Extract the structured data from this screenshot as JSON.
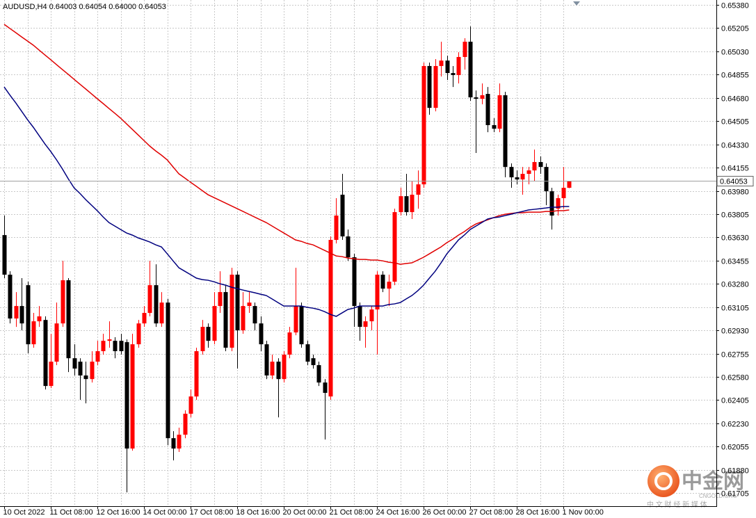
{
  "chart_data": {
    "type": "candlestick",
    "title": "AUDUSD,H4  0.64003 0.64054 0.64000 0.64053",
    "categories": [
      "10 Oct 2022",
      null,
      null,
      null,
      null,
      null,
      null,
      null,
      "11 Oct 08:00",
      null,
      null,
      null,
      null,
      null,
      null,
      null,
      "12 Oct 16:00",
      null,
      null,
      null,
      null,
      null,
      null,
      null,
      "14 Oct 00:00",
      null,
      null,
      null,
      null,
      null,
      null,
      null,
      "17 Oct 08:00",
      null,
      null,
      null,
      null,
      null,
      null,
      null,
      "18 Oct 16:00",
      null,
      null,
      null,
      null,
      null,
      null,
      null,
      "20 Oct 00:00",
      null,
      null,
      null,
      null,
      null,
      null,
      null,
      "21 Oct 08:00",
      null,
      null,
      null,
      null,
      null,
      null,
      null,
      "24 Oct 16:00",
      null,
      null,
      null,
      null,
      null,
      null,
      null,
      "26 Oct 00:00",
      null,
      null,
      null,
      null,
      null,
      null,
      null,
      "27 Oct 08:00",
      null,
      null,
      null,
      null,
      null,
      null,
      null,
      "28 Oct 16:00",
      null,
      null,
      null,
      null,
      null,
      null,
      null,
      "1 Nov 00:00",
      null
    ],
    "open": [
      0.63647,
      0.63349,
      0.63019,
      0.63113,
      0.6327,
      0.62825,
      0.62998,
      0.63008,
      0.62511,
      0.62694,
      0.62982,
      0.63307,
      0.6272,
      0.62694,
      0.6259,
      0.62563,
      0.62694,
      0.62773,
      0.62851,
      0.62851,
      0.62851,
      0.62841,
      0.6204,
      0.62825,
      0.62982,
      0.63061,
      0.6327,
      0.62982,
      0.63139,
      0.62118,
      0.6204,
      0.62144,
      0.62302,
      0.62432,
      0.62773,
      0.62956,
      0.62851,
      0.63113,
      0.63218,
      0.62799,
      0.63349,
      0.6293,
      0.63113,
      0.63113,
      0.62982,
      0.62825,
      0.6259,
      0.62694,
      0.62563,
      0.62747,
      0.62914,
      0.63113,
      0.62825,
      0.6272,
      0.62668,
      0.62537,
      0.62432,
      0.63611,
      0.63951,
      0.63637,
      0.6348,
      0.63113,
      0.62956,
      0.62998,
      0.63087,
      0.63349,
      0.63244,
      0.63296,
      0.6382,
      0.6394,
      0.6382,
      0.63951,
      0.64029,
      0.6492,
      0.64605,
      0.6492,
      0.64961,
      0.64867,
      0.64852,
      0.64988,
      0.65103,
      0.64684,
      0.64673,
      0.6471,
      0.64475,
      0.64448,
      0.647,
      0.6416,
      0.64082,
      0.64066,
      0.64108,
      0.64134,
      0.64197,
      0.6416,
      0.63977,
      0.63846,
      0.63925,
      0.64003
    ],
    "high": [
      0.63794,
      0.63375,
      0.63218,
      0.63323,
      0.63296,
      0.63061,
      0.63113,
      0.63035,
      0.62904,
      0.63139,
      0.63453,
      0.63323,
      0.62825,
      0.6272,
      0.62694,
      0.62773,
      0.62851,
      0.62904,
      0.62998,
      0.62878,
      0.62904,
      0.62862,
      0.62904,
      0.63008,
      0.63113,
      0.63453,
      0.63427,
      0.63218,
      0.63166,
      0.62171,
      0.62197,
      0.62328,
      0.62485,
      0.62799,
      0.63008,
      0.62982,
      0.63218,
      0.63375,
      0.6327,
      0.63401,
      0.63375,
      0.63218,
      0.63218,
      0.63139,
      0.63035,
      0.62851,
      0.62747,
      0.6272,
      0.62773,
      0.62956,
      0.63401,
      0.63139,
      0.62851,
      0.62747,
      0.62694,
      0.62563,
      0.63637,
      0.63925,
      0.64108,
      0.63689,
      0.63506,
      0.63139,
      0.63035,
      0.63113,
      0.63375,
      0.63375,
      0.63349,
      0.63846,
      0.64003,
      0.64108,
      0.64056,
      0.64134,
      0.64946,
      0.64946,
      0.64972,
      0.65103,
      0.64998,
      0.6492,
      0.65024,
      0.65129,
      0.65218,
      0.64736,
      0.64789,
      0.64762,
      0.64527,
      0.64789,
      0.64726,
      0.64187,
      0.64134,
      0.6416,
      0.6416,
      0.64291,
      0.64239,
      0.64187,
      0.64003,
      0.63951,
      0.6416,
      0.64054
    ],
    "low": [
      0.63323,
      0.62982,
      0.62956,
      0.6293,
      0.62757,
      0.62799,
      0.62956,
      0.62485,
      0.62495,
      0.62668,
      0.62956,
      0.62616,
      0.6259,
      0.62406,
      0.6238,
      0.62537,
      0.62668,
      0.62747,
      0.62799,
      0.6272,
      0.62747,
      0.6171,
      0.62024,
      0.62799,
      0.62956,
      0.63035,
      0.62956,
      0.62956,
      0.62066,
      0.61951,
      0.62014,
      0.62118,
      0.62275,
      0.62406,
      0.62747,
      0.62799,
      0.62825,
      0.63061,
      0.62773,
      0.62773,
      0.62642,
      0.62904,
      0.63061,
      0.6293,
      0.62773,
      0.62563,
      0.62563,
      0.62275,
      0.62537,
      0.6272,
      0.62893,
      0.62799,
      0.62668,
      0.62642,
      0.62511,
      0.62108,
      0.62406,
      0.63584,
      0.63611,
      0.63453,
      0.62956,
      0.62851,
      0.62799,
      0.6293,
      0.62747,
      0.63218,
      0.63113,
      0.6327,
      0.63794,
      0.63794,
      0.63768,
      0.63846,
      0.64003,
      0.64553,
      0.64579,
      0.64841,
      0.64815,
      0.64762,
      0.64789,
      0.64893,
      0.64658,
      0.64265,
      0.64632,
      0.64422,
      0.64422,
      0.64422,
      0.64082,
      0.64003,
      0.64029,
      0.63951,
      0.64029,
      0.64056,
      0.64108,
      0.63872,
      0.63689,
      0.63794,
      0.63846,
      0.64
    ],
    "close": [
      0.63349,
      0.63019,
      0.63113,
      0.62982,
      0.62825,
      0.62998,
      0.63035,
      0.62511,
      0.62694,
      0.62982,
      0.63307,
      0.6272,
      0.62642,
      0.6259,
      0.62563,
      0.62694,
      0.62773,
      0.62851,
      0.62862,
      0.62773,
      0.62773,
      0.6204,
      0.62825,
      0.62982,
      0.63061,
      0.6327,
      0.62982,
      0.63139,
      0.62118,
      0.6204,
      0.62144,
      0.62302,
      0.62432,
      0.62773,
      0.62956,
      0.62851,
      0.63113,
      0.63218,
      0.62799,
      0.63349,
      0.6293,
      0.63113,
      0.63139,
      0.62982,
      0.62825,
      0.6259,
      0.62694,
      0.62563,
      0.62747,
      0.62914,
      0.63113,
      0.62825,
      0.62694,
      0.62668,
      0.62537,
      0.62459,
      0.63611,
      0.63794,
      0.63637,
      0.6348,
      0.63113,
      0.62956,
      0.62998,
      0.63087,
      0.63349,
      0.63244,
      0.63296,
      0.6382,
      0.6394,
      0.6382,
      0.63951,
      0.64029,
      0.6492,
      0.64605,
      0.6492,
      0.64961,
      0.64867,
      0.64852,
      0.64988,
      0.65103,
      0.64684,
      0.64673,
      0.647,
      0.64475,
      0.64448,
      0.647,
      0.6416,
      0.64082,
      0.64066,
      0.64108,
      0.64134,
      0.64197,
      0.6416,
      0.63977,
      0.63794,
      0.63925,
      0.64003,
      0.64053
    ],
    "up_color": "#ff0000",
    "down_color": "#000000",
    "series": [
      {
        "color": "#e00000",
        "values": [
          0.65234,
          0.65202,
          0.65171,
          0.65139,
          0.65108,
          0.65077,
          0.6504,
          0.65003,
          0.64967,
          0.6493,
          0.64893,
          0.64857,
          0.6482,
          0.64783,
          0.64747,
          0.6471,
          0.64673,
          0.64637,
          0.646,
          0.64564,
          0.64527,
          0.64485,
          0.64443,
          0.64401,
          0.64359,
          0.64317,
          0.64281,
          0.64249,
          0.64213,
          0.6416,
          0.64108,
          0.64077,
          0.64045,
          0.64014,
          0.63982,
          0.63951,
          0.6393,
          0.63909,
          0.63888,
          0.63867,
          0.63846,
          0.63825,
          0.63804,
          0.63783,
          0.63762,
          0.63741,
          0.63715,
          0.63689,
          0.63663,
          0.63637,
          0.63611,
          0.636,
          0.63584,
          0.63574,
          0.63553,
          0.63532,
          0.63511,
          0.6349,
          0.63485,
          0.63474,
          0.63469,
          0.63464,
          0.63464,
          0.63459,
          0.63459,
          0.63453,
          0.63443,
          0.63438,
          0.63427,
          0.63433,
          0.63438,
          0.63459,
          0.6348,
          0.63506,
          0.63532,
          0.63558,
          0.6359,
          0.63616,
          0.63647,
          0.63673,
          0.63705,
          0.63731,
          0.63747,
          0.63762,
          0.63778,
          0.63794,
          0.63804,
          0.6381,
          0.63815,
          0.63815,
          0.6382,
          0.6382,
          0.6382,
          0.63825,
          0.63825,
          0.63831,
          0.63831,
          0.63836
        ]
      },
      {
        "color": "#00007f",
        "values": [
          0.64762,
          0.647,
          0.64642,
          0.64579,
          0.64516,
          0.64459,
          0.64396,
          0.64333,
          0.64276,
          0.64213,
          0.64145,
          0.64071,
          0.64003,
          0.63961,
          0.63914,
          0.63872,
          0.6383,
          0.63783,
          0.63741,
          0.63715,
          0.63689,
          0.63663,
          0.63647,
          0.63626,
          0.63611,
          0.63595,
          0.63574,
          0.63558,
          0.63506,
          0.63453,
          0.63401,
          0.63375,
          0.63349,
          0.63323,
          0.63312,
          0.63307,
          0.63296,
          0.63281,
          0.6327,
          0.63255,
          0.63244,
          0.63233,
          0.63223,
          0.63213,
          0.63202,
          0.63192,
          0.63166,
          0.63139,
          0.63113,
          0.63113,
          0.63113,
          0.63113,
          0.63103,
          0.63097,
          0.63087,
          0.63071,
          0.6305,
          0.63035,
          0.63061,
          0.63087,
          0.63097,
          0.63113,
          0.63113,
          0.63113,
          0.63113,
          0.63113,
          0.63124,
          0.63129,
          0.63139,
          0.63166,
          0.63192,
          0.63228,
          0.6327,
          0.63323,
          0.63375,
          0.63438,
          0.63506,
          0.63558,
          0.63611,
          0.63647,
          0.63689,
          0.63715,
          0.63741,
          0.63768,
          0.63778,
          0.63783,
          0.63794,
          0.63804,
          0.63815,
          0.63825,
          0.63836,
          0.63841,
          0.63846,
          0.63851,
          0.63857,
          0.63857,
          0.63862,
          0.63862
        ]
      }
    ],
    "ylim": [
      0.61606,
      0.65417
    ],
    "yticks": [
      {
        "value": 0.6538,
        "label": "0.65380"
      },
      0.65205,
      {
        "value": 0.6503,
        "label": "0.65030"
      },
      0.64855,
      {
        "value": 0.6468,
        "label": "0.64680"
      },
      0.64505,
      {
        "value": 0.6433,
        "label": "0.64330"
      },
      0.64155,
      {
        "value": 0.6398,
        "label": "0.63980"
      },
      0.63805,
      {
        "value": 0.6363,
        "label": "0.63630"
      },
      0.63455,
      {
        "value": 0.6328,
        "label": "0.63280"
      },
      0.63105,
      {
        "value": 0.6293,
        "label": "0.62930"
      },
      0.62755,
      {
        "value": 0.6258,
        "label": "0.62580"
      },
      0.62405,
      {
        "value": 0.6223,
        "label": "0.62230"
      },
      0.62055,
      {
        "value": 0.6188,
        "label": "0.61880"
      },
      0.61705
    ],
    "grid": true,
    "price_line": 0.64053,
    "watermark": {
      "name": "中金网",
      "site": "CNGOLD.ORG",
      "slogan": "中 文 财 经 新 媒 体"
    }
  }
}
